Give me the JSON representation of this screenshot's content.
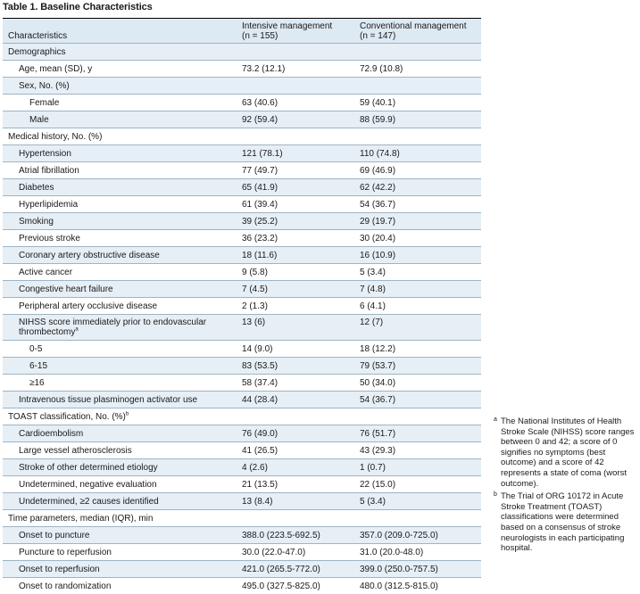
{
  "caption": "Table 1. Baseline Characteristics",
  "headers": {
    "characteristics": "Characteristics",
    "intensive_line1": "Intensive management",
    "intensive_line2": "(n = 155)",
    "conventional_line1": "Conventional management",
    "conventional_line2": "(n = 147)"
  },
  "rows": [
    {
      "label": "Demographics",
      "level": 0,
      "a": "",
      "b": "",
      "shade": true
    },
    {
      "label": "Age, mean (SD), y",
      "level": 1,
      "a": "73.2 (12.1)",
      "b": "72.9 (10.8)",
      "shade": false
    },
    {
      "label": "Sex, No. (%)",
      "level": 1,
      "a": "",
      "b": "",
      "shade": true
    },
    {
      "label": "Female",
      "level": 2,
      "a": "63 (40.6)",
      "b": "59 (40.1)",
      "shade": false
    },
    {
      "label": "Male",
      "level": 2,
      "a": "92 (59.4)",
      "b": "88 (59.9)",
      "shade": true
    },
    {
      "label": "Medical history, No. (%)",
      "level": 0,
      "a": "",
      "b": "",
      "shade": false
    },
    {
      "label": "Hypertension",
      "level": 1,
      "a": "121 (78.1)",
      "b": "110 (74.8)",
      "shade": true
    },
    {
      "label": "Atrial fibrillation",
      "level": 1,
      "a": "77 (49.7)",
      "b": "69 (46.9)",
      "shade": false
    },
    {
      "label": "Diabetes",
      "level": 1,
      "a": "65 (41.9)",
      "b": "62 (42.2)",
      "shade": true
    },
    {
      "label": "Hyperlipidemia",
      "level": 1,
      "a": "61 (39.4)",
      "b": "54 (36.7)",
      "shade": false
    },
    {
      "label": "Smoking",
      "level": 1,
      "a": "39 (25.2)",
      "b": "29 (19.7)",
      "shade": true
    },
    {
      "label": "Previous stroke",
      "level": 1,
      "a": "36 (23.2)",
      "b": "30 (20.4)",
      "shade": false
    },
    {
      "label": "Coronary artery obstructive disease",
      "level": 1,
      "a": "18 (11.6)",
      "b": "16 (10.9)",
      "shade": true
    },
    {
      "label": "Active cancer",
      "level": 1,
      "a": "9 (5.8)",
      "b": "5 (3.4)",
      "shade": false
    },
    {
      "label": "Congestive heart failure",
      "level": 1,
      "a": "7 (4.5)",
      "b": "7 (4.8)",
      "shade": true
    },
    {
      "label": "Peripheral artery occlusive disease",
      "level": 1,
      "a": "2 (1.3)",
      "b": "6 (4.1)",
      "shade": false
    },
    {
      "label": "NIHSS score immediately prior to endovascular thrombectomy",
      "sup": "a",
      "level": 1,
      "a": "13 (6)",
      "b": "12 (7)",
      "shade": true,
      "tall": true
    },
    {
      "label": "0-5",
      "level": 2,
      "a": "14 (9.0)",
      "b": "18 (12.2)",
      "shade": false
    },
    {
      "label": "6-15",
      "level": 2,
      "a": "83 (53.5)",
      "b": "79 (53.7)",
      "shade": true
    },
    {
      "label": "≥16",
      "level": 2,
      "a": "58 (37.4)",
      "b": "50 (34.0)",
      "shade": false
    },
    {
      "label": "Intravenous tissue plasminogen activator use",
      "level": 1,
      "a": "44 (28.4)",
      "b": "54 (36.7)",
      "shade": true
    },
    {
      "label": "TOAST classification, No. (%)",
      "sup": "b",
      "level": 0,
      "a": "",
      "b": "",
      "shade": false
    },
    {
      "label": "Cardioembolism",
      "level": 1,
      "a": "76 (49.0)",
      "b": "76 (51.7)",
      "shade": true
    },
    {
      "label": "Large vessel atherosclerosis",
      "level": 1,
      "a": "41 (26.5)",
      "b": "43 (29.3)",
      "shade": false
    },
    {
      "label": "Stroke of other determined etiology",
      "level": 1,
      "a": "4 (2.6)",
      "b": "1 (0.7)",
      "shade": true
    },
    {
      "label": "Undetermined, negative evaluation",
      "level": 1,
      "a": "21 (13.5)",
      "b": "22 (15.0)",
      "shade": false
    },
    {
      "label": "Undetermined, ≥2 causes identified",
      "level": 1,
      "a": "13 (8.4)",
      "b": "5 (3.4)",
      "shade": true
    },
    {
      "label": "Time parameters, median (IQR), min",
      "level": 0,
      "a": "",
      "b": "",
      "shade": false
    },
    {
      "label": "Onset to puncture",
      "level": 1,
      "a": "388.0 (223.5-692.5)",
      "b": "357.0 (209.0-725.0)",
      "shade": true
    },
    {
      "label": "Puncture to reperfusion",
      "level": 1,
      "a": "30.0 (22.0-47.0)",
      "b": "31.0 (20.0-48.0)",
      "shade": false
    },
    {
      "label": "Onset to reperfusion",
      "level": 1,
      "a": "421.0 (265.5-772.0)",
      "b": "399.0 (250.0-757.5)",
      "shade": true
    },
    {
      "label": "Onset to randomization",
      "level": 1,
      "a": "495.0 (327.5-825.0)",
      "b": "480.0 (312.5-815.0)",
      "shade": false
    }
  ],
  "footnotes": [
    {
      "marker": "a",
      "text": "The National Institutes of Health Stroke Scale (NIHSS) score ranges between 0 and 42; a score of 0 signifies no symptoms (best outcome) and a score of 42 represents a state of coma (worst outcome)."
    },
    {
      "marker": "b",
      "text": "The Trial of ORG 10172 in Acute Stroke Treatment (TOAST) classifications were determined based on a consensus of stroke neurologists in each participating hospital."
    }
  ]
}
